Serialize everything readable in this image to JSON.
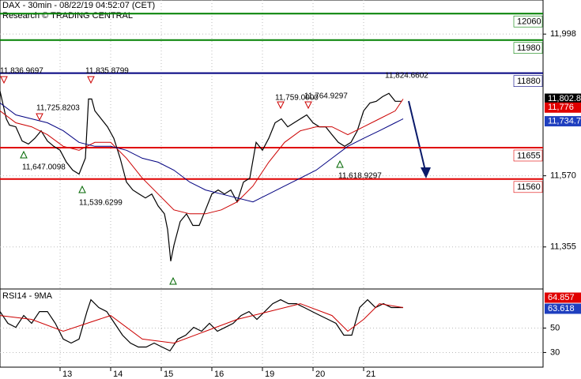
{
  "chart_data": [
    {
      "type": "line",
      "title": "DAX - 30min - 08/22/19 04:52:07 (CET)",
      "subtitle": "Research © TRADING CENTRAL",
      "xlim": [
        0,
        171.75
      ],
      "xticks": [
        {
          "value": 19,
          "label": "13"
        },
        {
          "value": 35,
          "label": "14"
        },
        {
          "value": 51,
          "label": "15"
        },
        {
          "value": 67,
          "label": "16"
        },
        {
          "value": 83,
          "label": "19"
        },
        {
          "value": 99,
          "label": "20"
        },
        {
          "value": 115,
          "label": "21"
        }
      ],
      "ylim": [
        11228,
        12101
      ],
      "yticks": [
        {
          "value": 11998,
          "label": "11,998"
        },
        {
          "value": 11570,
          "label": "11,570"
        },
        {
          "value": 11355,
          "label": "11,355"
        }
      ],
      "grid": true,
      "series": [
        {
          "color": "#000000",
          "x": [
            0,
            2,
            3,
            5,
            7,
            9,
            11,
            13,
            15,
            17,
            19,
            21,
            23,
            25,
            27,
            28,
            29,
            30,
            32,
            34,
            36,
            38,
            40,
            42,
            44,
            46,
            48,
            50,
            52,
            53,
            54,
            55,
            56,
            57,
            59,
            61,
            63,
            65,
            67,
            69,
            71,
            73,
            75,
            77,
            79,
            81,
            83,
            85,
            87,
            89,
            91,
            93,
            95,
            97,
            99,
            101,
            103,
            105,
            107,
            109,
            111,
            113,
            115,
            117,
            119,
            121,
            123,
            125,
            127
          ],
          "values": [
            11826,
            11742,
            11723,
            11718,
            11675,
            11666,
            11683,
            11706,
            11675,
            11659,
            11647,
            11611,
            11587,
            11575,
            11623,
            11802,
            11802,
            11766,
            11742,
            11718,
            11683,
            11623,
            11551,
            11527,
            11515,
            11503,
            11515,
            11479,
            11455,
            11408,
            11312,
            11360,
            11396,
            11432,
            11455,
            11420,
            11420,
            11467,
            11515,
            11527,
            11515,
            11527,
            11491,
            11551,
            11563,
            11671,
            11647,
            11683,
            11730,
            11742,
            11718,
            11730,
            11742,
            11754,
            11730,
            11718,
            11718,
            11694,
            11671,
            11659,
            11671,
            11706,
            11766,
            11790,
            11795,
            11809,
            11819,
            11795,
            11795
          ]
        },
        {
          "color": "#cc0000",
          "x": [
            0,
            5,
            10,
            15,
            20,
            25,
            30,
            35,
            40,
            45,
            50,
            55,
            60,
            65,
            70,
            75,
            80,
            85,
            90,
            95,
            100,
            105,
            110,
            115,
            120,
            125,
            127.5
          ],
          "values": [
            11766,
            11730,
            11718,
            11694,
            11659,
            11647,
            11671,
            11671,
            11623,
            11563,
            11515,
            11467,
            11455,
            11455,
            11467,
            11491,
            11539,
            11611,
            11671,
            11706,
            11718,
            11718,
            11694,
            11718,
            11742,
            11766,
            11802
          ]
        },
        {
          "color": "#000080",
          "x": [
            0,
            5,
            10,
            15,
            20,
            25,
            30,
            35,
            40,
            45,
            50,
            55,
            60,
            65,
            70,
            75,
            80,
            85,
            90,
            95,
            100,
            105,
            110,
            115,
            120,
            125,
            127.5
          ],
          "values": [
            11790,
            11754,
            11742,
            11730,
            11706,
            11671,
            11659,
            11659,
            11647,
            11623,
            11611,
            11587,
            11551,
            11527,
            11515,
            11503,
            11491,
            11515,
            11539,
            11563,
            11587,
            11623,
            11659,
            11683,
            11706,
            11730,
            11742
          ]
        }
      ],
      "levels": [
        {
          "value": 12060,
          "color": "#008000"
        },
        {
          "value": 11980,
          "color": "#008000"
        },
        {
          "value": 11880,
          "color": "#000080"
        },
        {
          "value": 11655,
          "color": "#e00000"
        },
        {
          "value": 11560,
          "color": "#e00000"
        }
      ],
      "annotations": [
        "11,836.9697",
        "11,835.8799",
        "11,725.8203",
        "11,647.0098",
        "11,539.6299",
        "11,759.0000",
        "11,764.9297",
        "11,824.6602",
        "11,618.9297"
      ],
      "badges": [
        {
          "value": 11802.8,
          "label": "11,802.8",
          "color": "#000000"
        },
        {
          "value": 11776,
          "label": "11,776",
          "color": "#e00000"
        },
        {
          "value": 11734.7,
          "label": "11,734.7",
          "color": "#1f3fbf"
        }
      ]
    },
    {
      "type": "line",
      "title": "RSI14 - 9MA",
      "xlim": [
        0,
        171.75
      ],
      "ylim": [
        18,
        82
      ],
      "yticks": [
        50,
        30
      ],
      "grid": true,
      "series": [
        {
          "color": "#000000",
          "x": [
            0,
            2.5,
            5,
            7.5,
            10,
            12.5,
            15,
            17.5,
            20,
            22.5,
            25,
            27.5,
            28.75,
            31.25,
            33.75,
            36.25,
            38.75,
            41.25,
            43.75,
            46.25,
            48.75,
            51.25,
            53.75,
            56.25,
            58.75,
            61.25,
            63.75,
            66.25,
            68.75,
            71.25,
            73.75,
            76.25,
            78.75,
            81.25,
            83.75,
            86.25,
            88.75,
            91.25,
            93.75,
            96.25,
            98.75,
            101.25,
            103.75,
            106.25,
            108.75,
            111.25,
            113.75,
            116.25,
            118.75,
            121.25,
            123.75,
            126.25,
            127.5
          ],
          "values": [
            63.5,
            53.9,
            50.6,
            60.3,
            53.9,
            63.5,
            63.5,
            53.9,
            41.0,
            37.7,
            41.0,
            63.5,
            73.2,
            66.8,
            63.5,
            53.9,
            44.2,
            37.7,
            34.5,
            34.5,
            37.7,
            34.5,
            31.3,
            41.0,
            44.2,
            50.6,
            47.4,
            53.9,
            47.4,
            50.6,
            53.9,
            60.3,
            63.5,
            57.1,
            63.5,
            70.0,
            73.2,
            70.0,
            70.0,
            66.8,
            63.5,
            60.3,
            57.1,
            53.9,
            44.2,
            44.2,
            66.8,
            73.2,
            66.8,
            70.0,
            66.8,
            66.8,
            66.8
          ]
        },
        {
          "color": "#cc0000",
          "x": [
            0,
            10,
            20,
            27.5,
            35,
            45,
            55,
            65,
            75,
            85,
            95,
            105,
            110,
            115,
            120,
            127.5
          ],
          "values": [
            60.3,
            57.1,
            47.4,
            53.9,
            60.3,
            41.0,
            37.7,
            47.4,
            57.1,
            63.5,
            70.0,
            60.3,
            47.4,
            57.1,
            70.0,
            66.8
          ]
        }
      ],
      "badges": [
        {
          "value": 64.857,
          "color": "#e00000"
        },
        {
          "value": 63.618,
          "color": "#1f3fbf"
        }
      ]
    }
  ]
}
